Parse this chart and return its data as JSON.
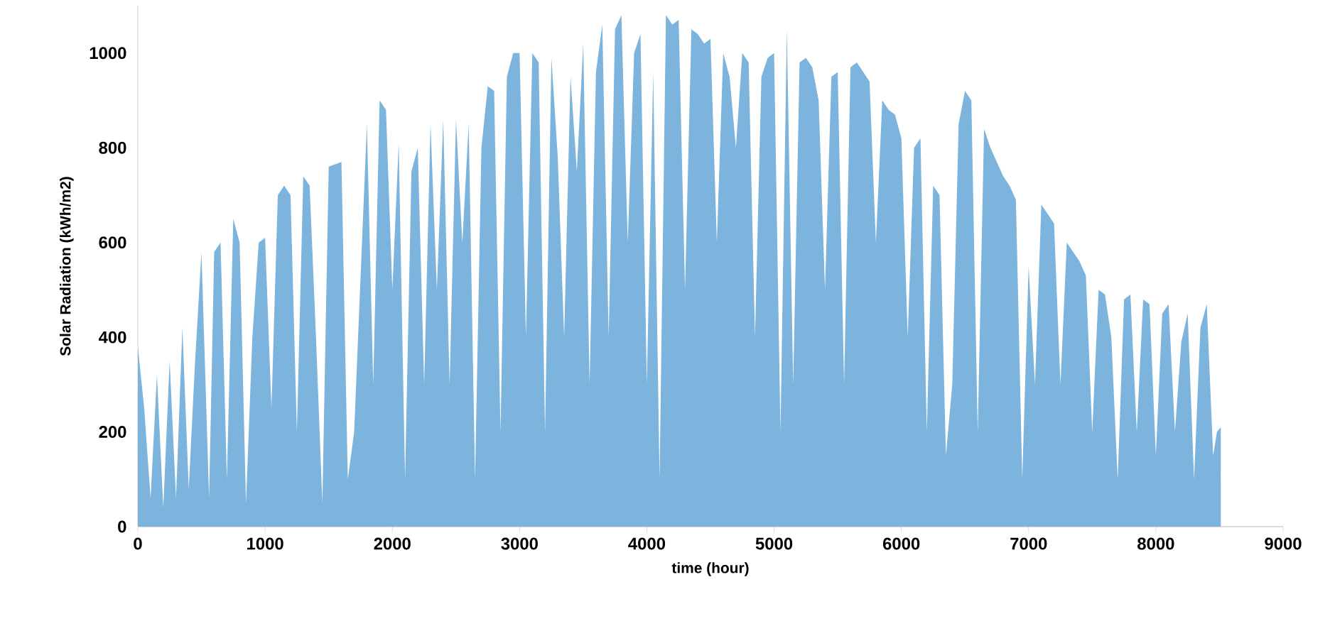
{
  "chart_data": {
    "type": "area",
    "xlabel": "time (hour)",
    "ylabel": "Solar Radiation (kWh/m2)",
    "color": "#7db4de",
    "x": [
      0,
      50,
      100,
      150,
      200,
      250,
      300,
      350,
      400,
      450,
      500,
      560,
      600,
      650,
      700,
      750,
      800,
      850,
      900,
      950,
      1000,
      1050,
      1100,
      1150,
      1200,
      1250,
      1300,
      1350,
      1400,
      1450,
      1500,
      1600,
      1650,
      1700,
      1800,
      1850,
      1900,
      1950,
      2000,
      2050,
      2100,
      2150,
      2200,
      2250,
      2300,
      2350,
      2400,
      2450,
      2500,
      2550,
      2600,
      2650,
      2700,
      2750,
      2800,
      2850,
      2900,
      2950,
      3000,
      3050,
      3100,
      3150,
      3200,
      3250,
      3300,
      3350,
      3400,
      3450,
      3500,
      3550,
      3600,
      3650,
      3700,
      3750,
      3800,
      3850,
      3900,
      3950,
      4000,
      4050,
      4100,
      4150,
      4200,
      4250,
      4300,
      4350,
      4400,
      4450,
      4500,
      4550,
      4600,
      4650,
      4700,
      4750,
      4800,
      4850,
      4900,
      4950,
      5000,
      5050,
      5100,
      5150,
      5200,
      5250,
      5300,
      5350,
      5400,
      5450,
      5500,
      5550,
      5600,
      5650,
      5700,
      5750,
      5800,
      5850,
      5900,
      5950,
      6000,
      6050,
      6100,
      6150,
      6200,
      6250,
      6300,
      6350,
      6400,
      6450,
      6500,
      6550,
      6600,
      6650,
      6700,
      6750,
      6800,
      6850,
      6900,
      6950,
      7000,
      7050,
      7100,
      7150,
      7200,
      7250,
      7300,
      7350,
      7400,
      7450,
      7500,
      7550,
      7600,
      7650,
      7700,
      7750,
      7800,
      7850,
      7900,
      7950,
      8000,
      8050,
      8100,
      8150,
      8200,
      8250,
      8300,
      8350,
      8400,
      8450,
      8480,
      8510
    ],
    "values": [
      380,
      250,
      60,
      320,
      40,
      350,
      60,
      420,
      80,
      350,
      580,
      60,
      580,
      600,
      100,
      650,
      600,
      50,
      400,
      600,
      610,
      250,
      700,
      720,
      700,
      200,
      740,
      720,
      400,
      50,
      760,
      770,
      100,
      200,
      850,
      300,
      900,
      880,
      500,
      810,
      100,
      750,
      800,
      300,
      850,
      500,
      860,
      300,
      860,
      600,
      850,
      100,
      800,
      930,
      920,
      200,
      950,
      1000,
      1000,
      400,
      1000,
      980,
      200,
      990,
      780,
      400,
      950,
      750,
      1020,
      300,
      960,
      1060,
      400,
      1050,
      1080,
      600,
      1000,
      1040,
      300,
      960,
      100,
      1080,
      1060,
      1070,
      500,
      1050,
      1040,
      1020,
      1030,
      600,
      1000,
      950,
      800,
      1000,
      980,
      400,
      950,
      990,
      1000,
      200,
      1050,
      300,
      980,
      990,
      970,
      900,
      500,
      950,
      960,
      300,
      970,
      980,
      960,
      940,
      600,
      900,
      880,
      870,
      820,
      400,
      800,
      820,
      200,
      720,
      700,
      150,
      300,
      850,
      920,
      900,
      200,
      840,
      800,
      770,
      740,
      720,
      690,
      100,
      550,
      300,
      680,
      660,
      640,
      300,
      600,
      580,
      560,
      530,
      200,
      500,
      490,
      400,
      100,
      480,
      490,
      200,
      480,
      470,
      150,
      450,
      470,
      200,
      390,
      450,
      100,
      420,
      470,
      150,
      200,
      210
    ],
    "xlim": [
      0,
      9000
    ],
    "xticks": [
      0,
      1000,
      2000,
      3000,
      4000,
      5000,
      6000,
      7000,
      8000,
      9000
    ],
    "ylim": [
      0,
      1100
    ],
    "yticks": [
      0,
      200,
      400,
      600,
      800,
      1000
    ]
  }
}
